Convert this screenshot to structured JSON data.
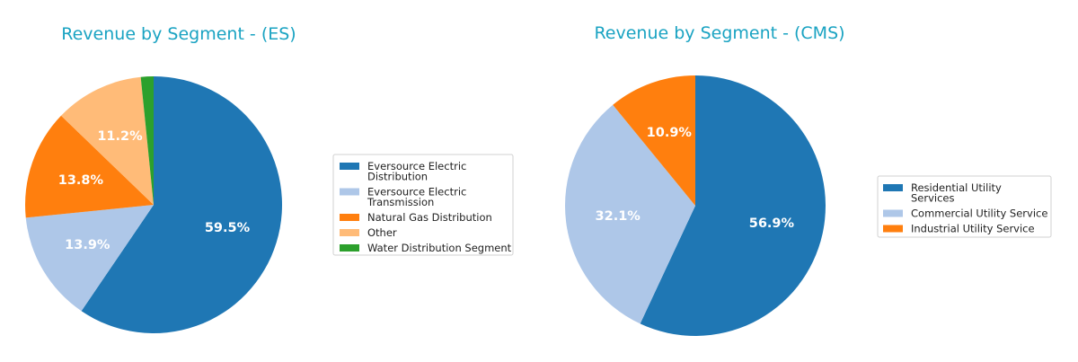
{
  "chart_data": [
    {
      "type": "pie",
      "title": "Revenue by Segment - (ES)",
      "start_angle_deg": 90,
      "direction": "clockwise",
      "legend_position": "right",
      "slices": [
        {
          "name": "Eversource Electric Distribution",
          "legend_lines": [
            "Eversource Electric",
            "Distribution"
          ],
          "value": 59.5,
          "label": "59.5%",
          "color": "#1f77b4"
        },
        {
          "name": "Eversource Electric Transmission",
          "legend_lines": [
            "Eversource Electric",
            "Transmission"
          ],
          "value": 13.9,
          "label": "13.9%",
          "color": "#aec7e8"
        },
        {
          "name": "Natural Gas Distribution",
          "legend_lines": [
            "Natural Gas Distribution"
          ],
          "value": 13.8,
          "label": "13.8%",
          "color": "#ff7f0e"
        },
        {
          "name": "Other",
          "legend_lines": [
            "Other"
          ],
          "value": 11.2,
          "label": "11.2%",
          "color": "#ffbb78"
        },
        {
          "name": "Water Distribution Segment",
          "legend_lines": [
            "Water Distribution Segment"
          ],
          "value": 1.6,
          "label": "",
          "color": "#2ca02c"
        }
      ]
    },
    {
      "type": "pie",
      "title": "Revenue by Segment - (CMS)",
      "start_angle_deg": 90,
      "direction": "clockwise",
      "legend_position": "right",
      "slices": [
        {
          "name": "Residential Utility Services",
          "legend_lines": [
            "Residential Utility",
            "Services"
          ],
          "value": 56.9,
          "label": "56.9%",
          "color": "#1f77b4"
        },
        {
          "name": "Commercial Utility Service",
          "legend_lines": [
            "Commercial Utility Service"
          ],
          "value": 32.1,
          "label": "32.1%",
          "color": "#aec7e8"
        },
        {
          "name": "Industrial Utility Service",
          "legend_lines": [
            "Industrial Utility Service"
          ],
          "value": 10.9,
          "label": "10.9%",
          "color": "#ff7f0e"
        }
      ]
    }
  ]
}
